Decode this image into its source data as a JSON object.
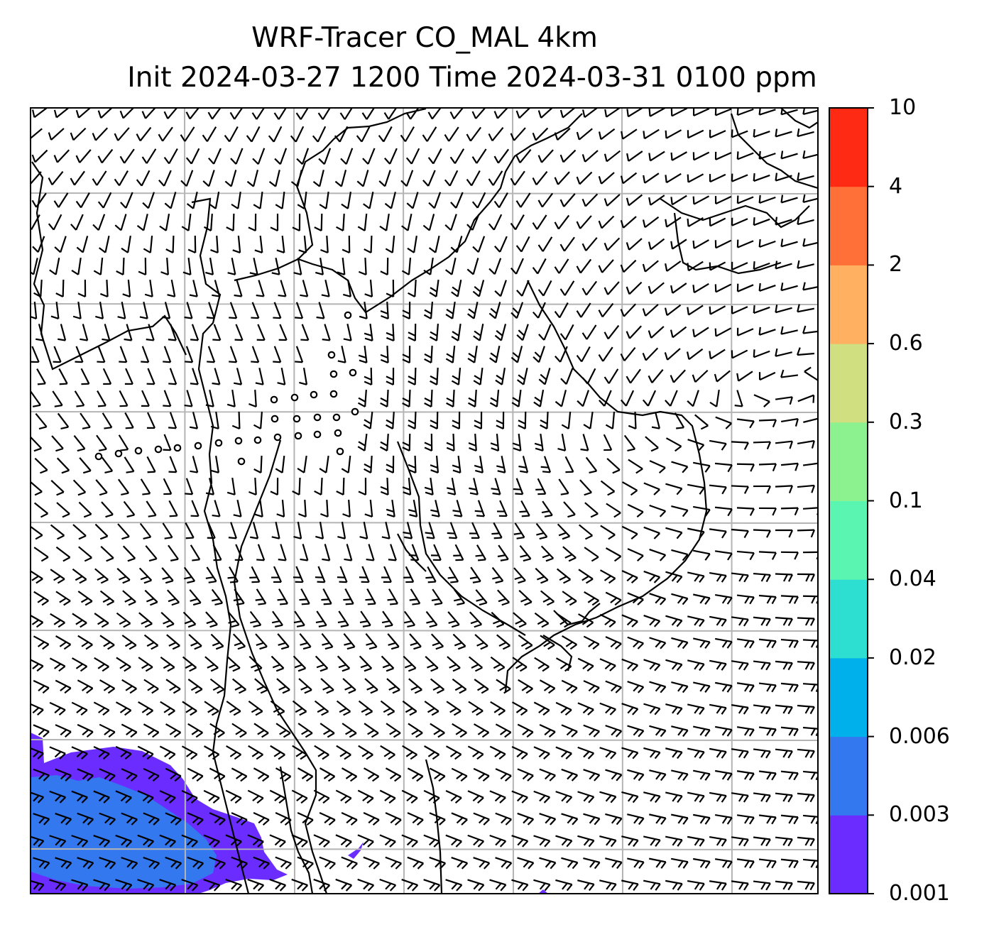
{
  "title": {
    "line1": "WRF-Tracer CO_MAL 4km",
    "line2": "Init 2024-03-27 1200 Time 2024-03-31 0100 ppm"
  },
  "colorbar": {
    "levels": [
      "0.001",
      "0.003",
      "0.006",
      "0.02",
      "0.04",
      "0.1",
      "0.3",
      "0.6",
      "2",
      "4",
      "10"
    ],
    "colors": [
      "#6a2cff",
      "#3478f0",
      "#00b0ea",
      "#2ddfd0",
      "#5bf5b2",
      "#8cf28f",
      "#d0e080",
      "#ffb060",
      "#ff7038",
      "#ff2a14"
    ]
  },
  "map": {
    "field": "CO tracer concentration with wind barbs",
    "plume_color": "#6a2cff",
    "plume_inner_color": "#3478f0",
    "grid_color": "#b4b4b4",
    "coastline_color": "#000000",
    "barb_color": "#000000"
  }
}
